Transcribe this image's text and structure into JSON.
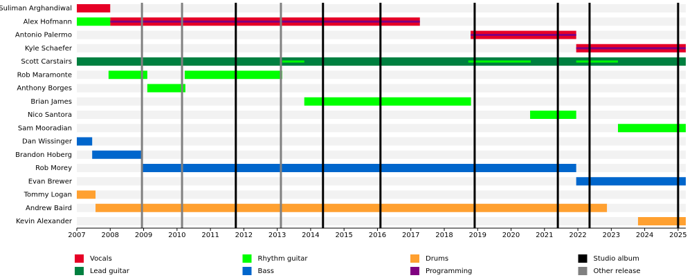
{
  "chart_data": {
    "type": "timeline",
    "categories": [
      "Suliman Arghandiwal",
      "Alex Hofmann",
      "Antonio Palermo",
      "Kyle Schaefer",
      "Scott Carstairs",
      "Rob Maramonte",
      "Anthony Borges",
      "Brian James",
      "Nico Santora",
      "Sam Mooradian",
      "Dan Wissinger",
      "Brandon Hoberg",
      "Rob Morey",
      "Evan Brewer",
      "Tommy Logan",
      "Andrew Baird",
      "Kevin Alexander"
    ],
    "xlim": [
      2007,
      2025.23
    ],
    "xticks": [
      2007,
      2008,
      2009,
      2010,
      2011,
      2012,
      2013,
      2014,
      2015,
      2016,
      2017,
      2018,
      2019,
      2020,
      2021,
      2022,
      2023,
      2024,
      2025
    ],
    "series": [
      {
        "name": "Vocals",
        "color": "#e60026",
        "values": [
          [
            [
              2007,
              2008
            ]
          ],
          [
            [
              2008,
              2017.27
            ]
          ],
          [
            [
              2018.79,
              2021.95
            ]
          ],
          [
            [
              2021.95,
              2025.23
            ]
          ],
          [],
          [],
          [],
          [],
          [],
          [],
          [],
          [],
          [],
          [],
          [],
          [],
          []
        ]
      },
      {
        "name": "Lead guitar",
        "color": "#008040",
        "values": [
          [],
          [],
          [],
          [],
          [
            [
              2007,
              2025.23
            ]
          ],
          [],
          [],
          [],
          [],
          [],
          [],
          [],
          [],
          [],
          [],
          [],
          []
        ]
      },
      {
        "name": "Rhythm guitar",
        "color": "#00ff00",
        "values": [
          [],
          [
            [
              2007,
              2008
            ]
          ],
          [],
          [],
          [
            [
              2013.15,
              2013.81
            ],
            [
              2018.72,
              2020.59
            ],
            [
              2021.95,
              2023.2
            ]
          ],
          [
            [
              2007.95,
              2009.11
            ],
            [
              2010.23,
              2013.15
            ]
          ],
          [
            [
              2009.11,
              2010.25
            ]
          ],
          [
            [
              2013.81,
              2018.8
            ]
          ],
          [
            [
              2020.57,
              2021.95
            ]
          ],
          [
            [
              2023.2,
              2025.23
            ]
          ],
          [],
          [],
          [],
          [],
          [],
          [],
          []
        ]
      },
      {
        "name": "Bass",
        "color": "#0066cc",
        "values": [
          [],
          [],
          [],
          [],
          [],
          [],
          [],
          [],
          [],
          [],
          [
            [
              2007,
              2007.46
            ]
          ],
          [
            [
              2007.46,
              2008.95
            ]
          ],
          [
            [
              2008.95,
              2021.95
            ]
          ],
          [
            [
              2021.95,
              2025.23
            ]
          ],
          [],
          [],
          []
        ]
      },
      {
        "name": "Drums",
        "color": "#ffa030",
        "values": [
          [],
          [],
          [],
          [],
          [],
          [],
          [],
          [],
          [],
          [],
          [],
          [],
          [],
          [],
          [
            [
              2007,
              2007.56
            ]
          ],
          [
            [
              2007.56,
              2022.87
            ]
          ],
          [
            [
              2023.8,
              2025.23
            ]
          ]
        ]
      },
      {
        "name": "Programming",
        "color": "#800080",
        "values": [
          [],
          [
            [
              2008,
              2017.27
            ]
          ],
          [
            [
              2018.79,
              2021.95
            ]
          ],
          [
            [
              2021.95,
              2025.23
            ]
          ],
          [],
          [],
          [],
          [],
          [],
          [],
          [],
          [],
          [],
          [],
          [],
          [],
          []
        ]
      }
    ],
    "markers": [
      {
        "name": "Studio album",
        "color": "#000000",
        "x": [
          2011.76,
          2014.37,
          2016.09,
          2018.91,
          2021.4,
          2022.35,
          2025.0
        ]
      },
      {
        "name": "Other release",
        "color": "#808080",
        "x": [
          2008.95,
          2010.15,
          2013.11
        ]
      }
    ]
  }
}
